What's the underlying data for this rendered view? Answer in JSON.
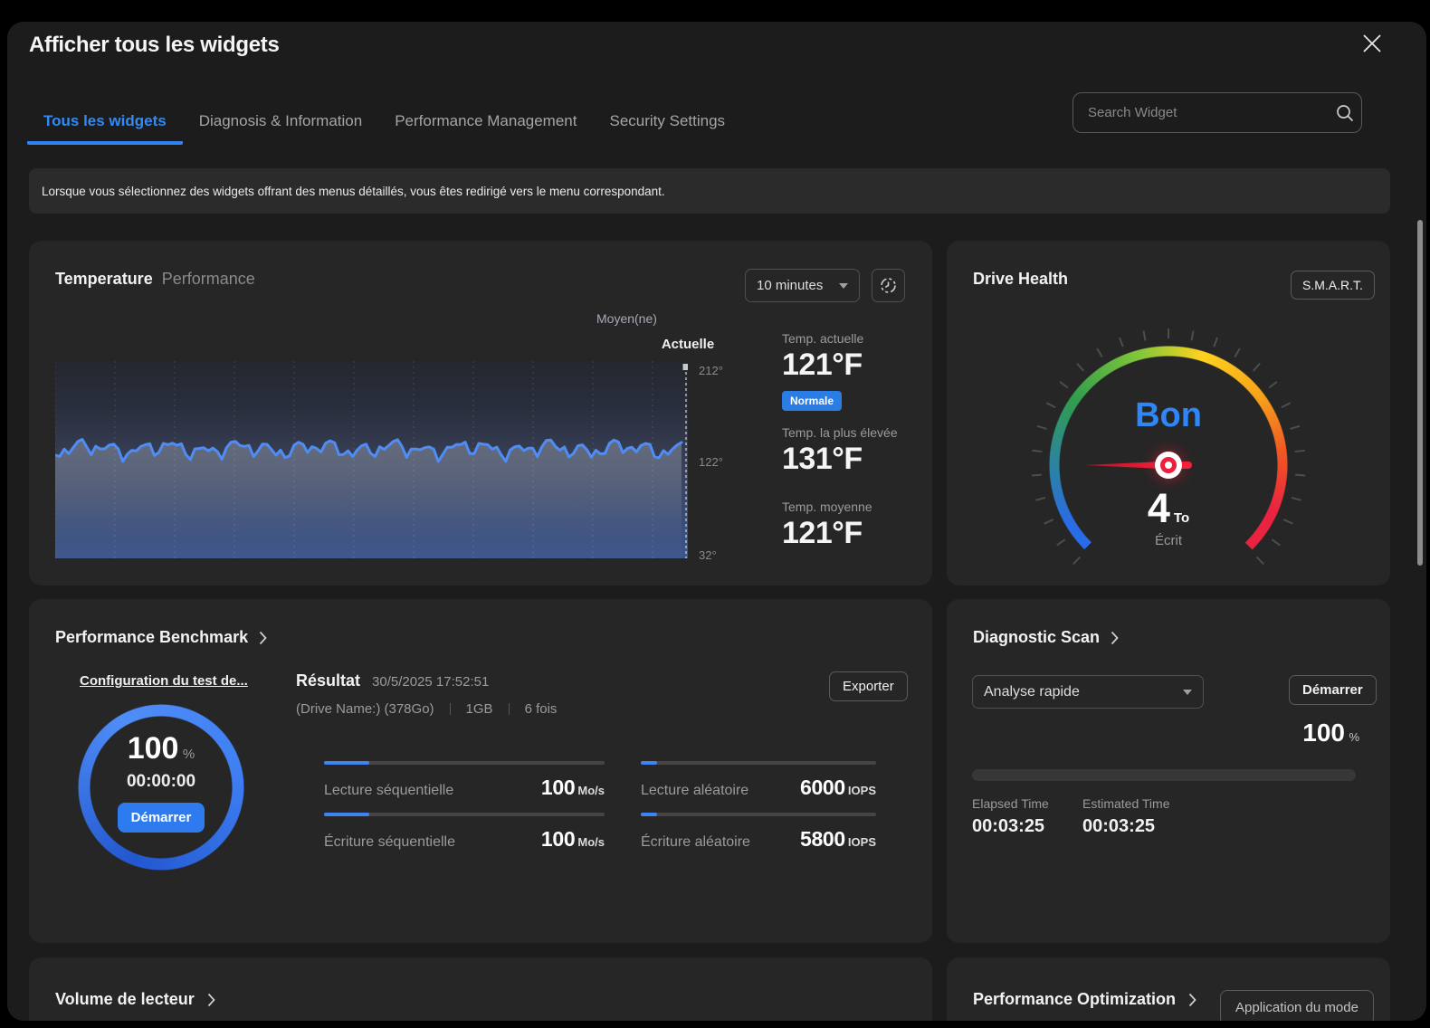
{
  "window": {
    "title": "Afficher tous les widgets"
  },
  "tabs": [
    {
      "label": "Tous les widgets",
      "active": true
    },
    {
      "label": "Diagnosis & Information",
      "active": false
    },
    {
      "label": "Performance Management",
      "active": false
    },
    {
      "label": "Security Settings",
      "active": false
    }
  ],
  "search": {
    "placeholder": "Search Widget"
  },
  "banner": {
    "text": "Lorsque vous sélectionnez des widgets offrant des menus détaillés, vous êtes redirigé vers le menu correspondant."
  },
  "temperature": {
    "title": "Temperature",
    "subtitle": "Performance",
    "interval": {
      "value": "10 minutes"
    },
    "cursor_label": "Actuelle",
    "series_label": "Moyen(ne)",
    "axis_ticks": [
      "212°",
      "122°",
      "32°"
    ],
    "current": {
      "label": "Temp. actuelle",
      "value": "121°F",
      "badge": "Normale"
    },
    "highest": {
      "label": "Temp. la plus élevée",
      "value": "131°F"
    },
    "average": {
      "label": "Temp. moyenne",
      "value": "121°F"
    },
    "chart_data": {
      "type": "line",
      "x_window": "10 minutes",
      "ylim_f": [
        32,
        212
      ],
      "y_ticks": [
        "212°",
        "122°",
        "32°"
      ],
      "series": [
        {
          "name": "Moyen(ne)",
          "approx_mean_f": 121,
          "approx_range_f": [
            117,
            127
          ]
        }
      ],
      "cursor": "Actuelle",
      "line_color": "#4f8df5"
    }
  },
  "drive_health": {
    "title": "Drive Health",
    "smart_button": "S.M.A.R.T.",
    "status": "Bon",
    "status_color": "#2f86f6",
    "written_value": "4",
    "written_unit": "To",
    "written_label": "Écrit",
    "gauge_colors": [
      "#2a6be8",
      "#2f9e4d",
      "#86c838",
      "#ffd21e",
      "#f7a21b",
      "#f05423",
      "#ea2440"
    ]
  },
  "benchmark": {
    "title": "Performance Benchmark",
    "config_link": "Configuration du test de...",
    "progress_value": "100",
    "progress_unit": "%",
    "elapsed": "00:00:00",
    "start_button": "Démarrer",
    "result_label": "Résultat",
    "result_timestamp": "30/5/2025 17:52:51",
    "drive_info": "(Drive Name:) (378Go)",
    "test_size": "1GB",
    "test_runs": "6 fois",
    "export_button": "Exporter",
    "bars": [
      {
        "label": "Lecture séquentielle",
        "value": "100",
        "unit": "Mo/s",
        "fill_pct": 16
      },
      {
        "label": "Écriture séquentielle",
        "value": "100",
        "unit": "Mo/s",
        "fill_pct": 16
      },
      {
        "label": "Lecture aléatoire",
        "value": "6000",
        "unit": "IOPS",
        "fill_pct": 7
      },
      {
        "label": "Écriture aléatoire",
        "value": "5800",
        "unit": "IOPS",
        "fill_pct": 7
      }
    ]
  },
  "diagnostic": {
    "title": "Diagnostic Scan",
    "mode": "Analyse rapide",
    "start_button": "Démarrer",
    "progress_value": "100",
    "progress_unit": "%",
    "elapsed": {
      "label": "Elapsed Time",
      "value": "00:03:25"
    },
    "estimated": {
      "label": "Estimated Time",
      "value": "00:03:25"
    }
  },
  "volume": {
    "title": "Volume de lecteur"
  },
  "performance_optimization": {
    "title": "Performance Optimization",
    "apply_button": "Application du mode"
  },
  "colors": {
    "accent_blue": "#2e7bf0",
    "badge_blue": "#2c7ce5",
    "modal_bg": "#1c1c1c",
    "card_bg": "#262626"
  }
}
